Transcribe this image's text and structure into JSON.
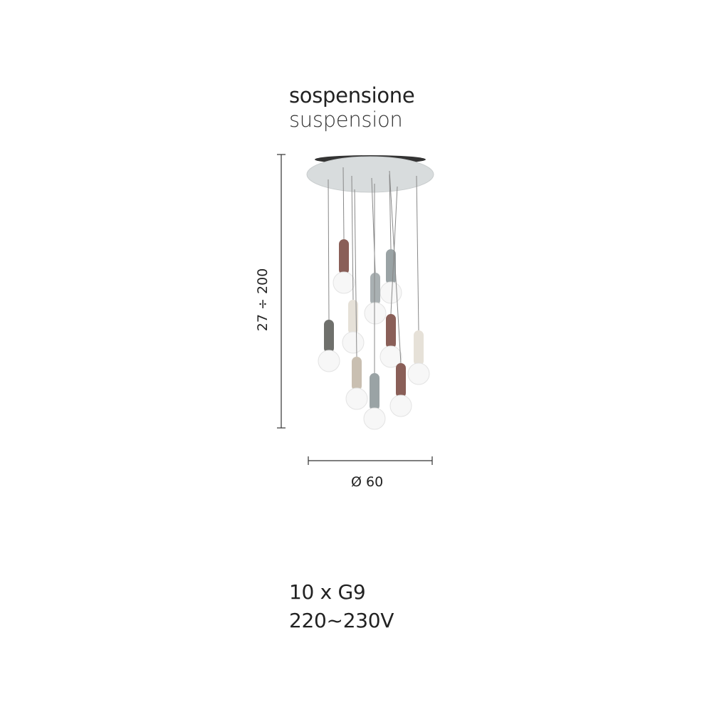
{
  "title": {
    "italian": "sospensione",
    "english": "suspension"
  },
  "dimensions": {
    "height": "27 ÷ 200",
    "diameter": "Ø 60"
  },
  "specs": {
    "bulbs": "10 x G9",
    "voltage": "220~230V"
  },
  "product": {
    "image": "pendant-lamp-10-lights",
    "colors": {
      "brown": "#8a5f58",
      "grey_blue": "#9aa3a5",
      "grey": "#a9b0b2",
      "cream": "#e6e1d8",
      "dark_grey": "#6f706c",
      "beige": "#c9bfb1",
      "canopy": "#d8dcdd"
    }
  }
}
